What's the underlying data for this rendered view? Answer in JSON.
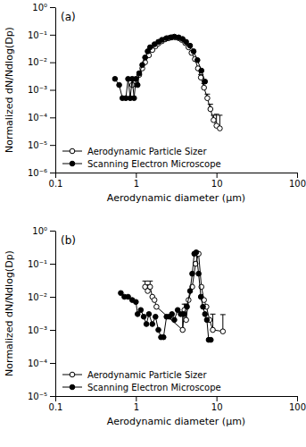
{
  "chart_data": [
    {
      "type": "line",
      "title": "(a)",
      "xlabel": "Aerodynamic diameter (μm)",
      "ylabel": "Normalized dN/Ndlog(Dp)",
      "log": true,
      "legend": "lower left",
      "xlim": [
        0.1,
        100
      ],
      "ylim": [
        1e-06,
        1
      ],
      "xticks": [
        0.1,
        1,
        10,
        100
      ],
      "yticks": [
        {
          "value": 1e-06,
          "label": "10⁻⁶"
        },
        {
          "value": 1e-05,
          "label": "10⁻⁵"
        },
        {
          "value": 0.0001,
          "label": "10⁻⁴"
        },
        {
          "value": 0.001,
          "label": "10⁻³"
        },
        {
          "value": 0.01,
          "label": "10⁻²"
        },
        {
          "value": 0.1,
          "label": "10⁻¹"
        },
        {
          "value": 1,
          "label": "10⁰"
        }
      ],
      "series": [
        {
          "name": "Aerodynamic Particle Sizer",
          "color": "#000000",
          "marker": "circle-open",
          "x": [
            0.9,
            1.0,
            1.1,
            1.2,
            1.3,
            1.45,
            1.6,
            1.75,
            1.9,
            2.1,
            2.3,
            2.55,
            2.8,
            3.1,
            3.4,
            3.7,
            4.1,
            4.5,
            4.9,
            5.4,
            5.9,
            6.4,
            7.0,
            7.7,
            8.4,
            9.2,
            10,
            11
          ],
          "values": [
            0.0015,
            0.002,
            0.0035,
            0.006,
            0.01,
            0.018,
            0.028,
            0.038,
            0.048,
            0.058,
            0.068,
            0.075,
            0.08,
            0.08,
            0.075,
            0.065,
            0.05,
            0.035,
            0.022,
            0.013,
            0.006,
            0.0028,
            0.0012,
            0.0005,
            0.0002,
            8e-05,
            5e-05,
            4e-05
          ],
          "errors": [
            0.0008,
            0.0008,
            0.001,
            null,
            null,
            null,
            null,
            null,
            null,
            null,
            null,
            null,
            null,
            null,
            null,
            null,
            null,
            null,
            null,
            null,
            null,
            0.0008,
            0.0005,
            0.0002,
            0.0001,
            4e-05,
            8e-05,
            8e-05
          ]
        },
        {
          "name": "Scanning Electron Microscope",
          "color": "#000000",
          "marker": "circle",
          "x": [
            0.55,
            0.62,
            0.68,
            0.75,
            0.8,
            0.85,
            0.9,
            0.95,
            1.0,
            1.05,
            1.1,
            1.2,
            1.3,
            1.4,
            1.5,
            1.7,
            1.9,
            2.1,
            2.4,
            2.7,
            3.0,
            3.4,
            3.8,
            4.2,
            4.7,
            5.2,
            5.8,
            6.5,
            7.2
          ],
          "values": [
            0.0025,
            0.0015,
            0.0005,
            0.0005,
            0.0025,
            0.0005,
            0.0025,
            0.0005,
            0.0025,
            0.0015,
            0.004,
            0.008,
            0.015,
            0.025,
            0.035,
            0.045,
            0.055,
            0.065,
            0.075,
            0.08,
            0.085,
            0.08,
            0.07,
            0.055,
            0.04,
            0.025,
            0.012,
            0.005,
            0.002
          ]
        }
      ]
    },
    {
      "type": "line",
      "title": "(b)",
      "xlabel": "Aerodynamic diameter (μm)",
      "ylabel": "Normalized dN/Ndlog(Dp)",
      "log": true,
      "legend": "lower left",
      "xlim": [
        0.1,
        100
      ],
      "ylim": [
        1e-05,
        1
      ],
      "xticks": [
        0.1,
        1,
        10,
        100
      ],
      "yticks": [
        {
          "value": 1e-05,
          "label": "10⁻⁵"
        },
        {
          "value": 0.0001,
          "label": "10⁻⁴"
        },
        {
          "value": 0.001,
          "label": "10⁻³"
        },
        {
          "value": 0.01,
          "label": "10⁻²"
        },
        {
          "value": 0.1,
          "label": "10⁻¹"
        },
        {
          "value": 1,
          "label": "10⁰"
        }
      ],
      "series": [
        {
          "name": "Aerodynamic Particle Sizer",
          "color": "#000000",
          "marker": "circle-open",
          "x": [
            1.3,
            1.4,
            1.5,
            1.6,
            1.7,
            1.8,
            3.8,
            4.0,
            4.2,
            4.5,
            5.0,
            5.5,
            6.0,
            6.5,
            7.0,
            7.5,
            8.2,
            9.0,
            12
          ],
          "values": [
            0.02,
            0.015,
            0.02,
            0.01,
            0.008,
            0.005,
            0.001,
            0.004,
            0.002,
            0.008,
            0.02,
            0.1,
            0.2,
            0.02,
            0.008,
            0.005,
            0.002,
            0.001,
            0.0009
          ],
          "errors": [
            0.01,
            0.008,
            0.01,
            null,
            null,
            null,
            0.002,
            0.002,
            0.004,
            null,
            null,
            null,
            null,
            null,
            null,
            null,
            null,
            0.002,
            0.002
          ]
        },
        {
          "name": "Scanning Electron Microscope",
          "color": "#000000",
          "marker": "circle",
          "x": [
            0.65,
            0.72,
            0.8,
            0.9,
            1.0,
            1.05,
            1.15,
            1.25,
            1.35,
            1.45,
            1.6,
            1.75,
            1.9,
            2.05,
            2.2,
            2.4,
            2.6,
            2.8,
            3.0,
            3.3,
            3.6,
            3.9,
            4.3,
            4.7,
            5.0,
            5.3,
            5.6,
            6.0,
            6.4,
            6.8,
            7.2,
            7.6,
            8.0,
            8.5
          ],
          "values": [
            0.013,
            0.01,
            0.01,
            0.008,
            0.007,
            0.003,
            0.004,
            0.0025,
            0.0015,
            0.003,
            0.0015,
            0.0025,
            0.001,
            0.0006,
            0.0006,
            0.0025,
            0.0025,
            0.003,
            0.002,
            0.004,
            0.003,
            0.003,
            0.005,
            0.015,
            0.05,
            0.2,
            0.22,
            0.05,
            0.01,
            0.005,
            0.003,
            0.002,
            0.0005,
            0.0005
          ]
        }
      ]
    }
  ]
}
